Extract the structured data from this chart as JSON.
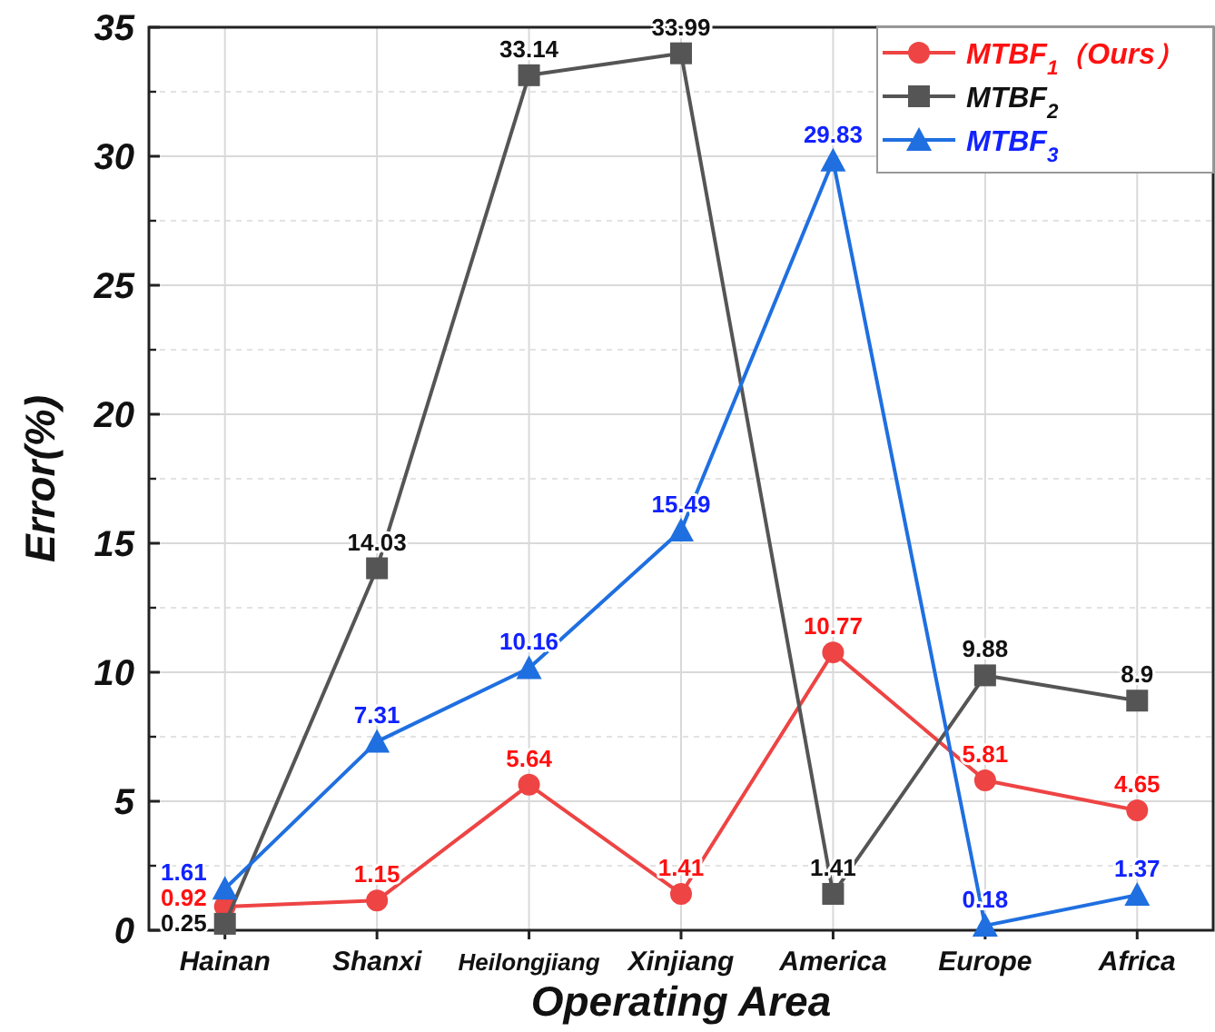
{
  "chart_data": {
    "type": "line",
    "xlabel": "Operating Area",
    "ylabel": "Error(%)",
    "categories": [
      "Hainan",
      "Shanxi",
      "Heilongjiang",
      "Xinjiang",
      "America",
      "Europe",
      "Africa"
    ],
    "series": [
      {
        "name": "MTBF$_{1}$（Ours）",
        "color": "#ee4444",
        "marker": "circle",
        "values": [
          0.92,
          1.15,
          5.64,
          1.41,
          10.77,
          5.81,
          4.65
        ]
      },
      {
        "name": "MTBF$_{2}$",
        "color": "#555555",
        "marker": "square",
        "values": [
          0.25,
          14.03,
          33.14,
          33.99,
          1.41,
          9.88,
          8.9
        ]
      },
      {
        "name": "MTBF$_{3}$",
        "color": "#1f6fe0",
        "marker": "triangle",
        "values": [
          1.61,
          7.31,
          10.16,
          15.49,
          29.83,
          0.18,
          1.37
        ]
      }
    ],
    "ylim": [
      0,
      35
    ],
    "yticks": [
      0,
      5,
      10,
      15,
      20,
      25,
      30,
      35
    ],
    "grid": true,
    "legend": "top right",
    "data_labels": true,
    "line_style": "solid"
  }
}
